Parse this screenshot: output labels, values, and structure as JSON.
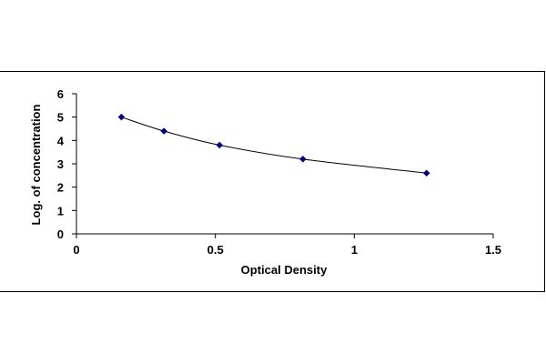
{
  "chart_data": {
    "type": "scatter",
    "title": "",
    "xlabel": "Optical Density",
    "ylabel": "Log. of concentration",
    "xlim": [
      0,
      1.5
    ],
    "ylim": [
      0,
      6
    ],
    "x_ticks": [
      0,
      0.5,
      1,
      1.5
    ],
    "x_tick_labels": [
      "0",
      "0.5",
      "1",
      "1.5"
    ],
    "y_ticks": [
      0,
      1,
      2,
      3,
      4,
      5,
      6
    ],
    "y_tick_labels": [
      "0",
      "1",
      "2",
      "3",
      "4",
      "5",
      "6"
    ],
    "grid": false,
    "legend": "none",
    "trendline": "smooth curve through points",
    "series": [
      {
        "x": [
          0.162,
          0.315,
          0.515,
          0.815,
          1.26
        ],
        "y": [
          5.0,
          4.4,
          3.8,
          3.2,
          2.6
        ],
        "color": "#000080",
        "marker": "diamond"
      }
    ]
  }
}
